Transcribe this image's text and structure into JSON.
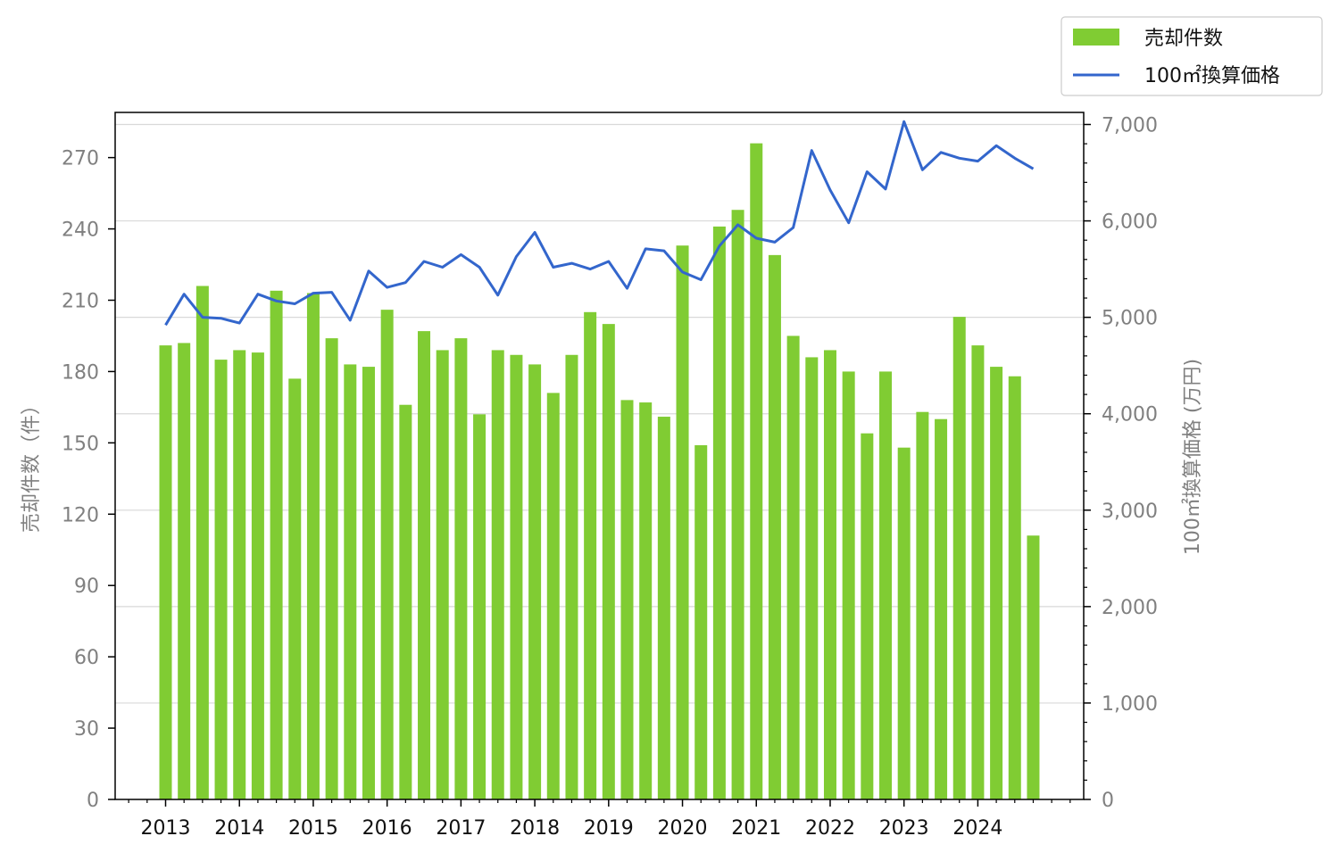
{
  "chart_data": {
    "type": "bar",
    "x": [
      "2013Q1",
      "2013Q2",
      "2013Q3",
      "2013Q4",
      "2014Q1",
      "2014Q2",
      "2014Q3",
      "2014Q4",
      "2015Q1",
      "2015Q2",
      "2015Q3",
      "2015Q4",
      "2016Q1",
      "2016Q2",
      "2016Q3",
      "2016Q4",
      "2017Q1",
      "2017Q2",
      "2017Q3",
      "2017Q4",
      "2018Q1",
      "2018Q2",
      "2018Q3",
      "2018Q4",
      "2019Q1",
      "2019Q2",
      "2019Q3",
      "2019Q4",
      "2020Q1",
      "2020Q2",
      "2020Q3",
      "2020Q4",
      "2021Q1",
      "2021Q2",
      "2021Q3",
      "2021Q4",
      "2022Q1",
      "2022Q2",
      "2022Q3",
      "2022Q4",
      "2023Q1",
      "2023Q2",
      "2023Q3",
      "2023Q4",
      "2024Q1",
      "2024Q2",
      "2024Q3",
      "2024Q4"
    ],
    "x_tick_labels": [
      "2013",
      "2014",
      "2015",
      "2016",
      "2017",
      "2018",
      "2019",
      "2020",
      "2021",
      "2022",
      "2023",
      "2024"
    ],
    "series": [
      {
        "name": "売却件数",
        "type": "bar",
        "axis": "left",
        "color": "#80cc33",
        "values": [
          191,
          192,
          216,
          185,
          189,
          188,
          214,
          177,
          213,
          194,
          183,
          182,
          206,
          166,
          197,
          189,
          194,
          162,
          189,
          187,
          183,
          171,
          187,
          205,
          200,
          168,
          167,
          161,
          233,
          149,
          241,
          248,
          276,
          229,
          195,
          186,
          189,
          180,
          154,
          180,
          148,
          163,
          160,
          203,
          191,
          182,
          178,
          111
        ]
      },
      {
        "name": "100㎡換算価格",
        "type": "line",
        "axis": "right",
        "color": "#3366cc",
        "values": [
          4920,
          5240,
          5000,
          4990,
          4940,
          5240,
          5170,
          5140,
          5250,
          5260,
          4970,
          5480,
          5310,
          5360,
          5580,
          5520,
          5650,
          5520,
          5230,
          5630,
          5880,
          5520,
          5560,
          5500,
          5580,
          5300,
          5710,
          5690,
          5470,
          5390,
          5740,
          5960,
          5820,
          5780,
          5930,
          6730,
          6320,
          5980,
          6510,
          6330,
          7030,
          6530,
          6710,
          6650,
          6620,
          6780,
          6650,
          6540
        ]
      }
    ],
    "y_left": {
      "label": "売却件数（件）",
      "ylim": [
        0,
        289
      ],
      "ticks": [
        "0",
        "30",
        "60",
        "90",
        "120",
        "150",
        "180",
        "210",
        "240",
        "270"
      ]
    },
    "y_right": {
      "label": "100㎡換算価格 (万円)",
      "ylim": [
        0,
        7125
      ],
      "ticks": [
        "0",
        "1,000",
        "2,000",
        "3,000",
        "4,000",
        "5,000",
        "6,000",
        "7,000"
      ]
    },
    "grid": "horizontal (right axis)",
    "legend": {
      "placement": "top-right",
      "entries": [
        "売却件数",
        "100㎡換算価格"
      ]
    }
  }
}
